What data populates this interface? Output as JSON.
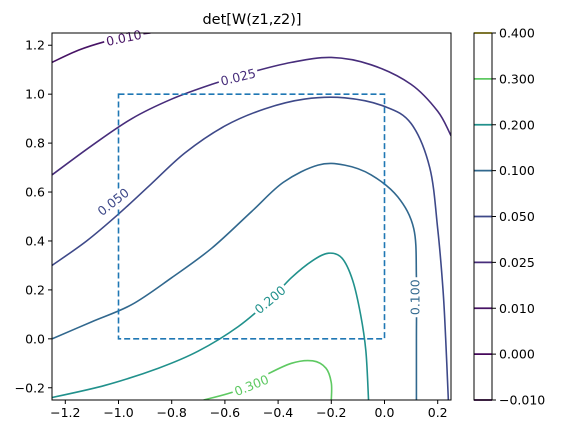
{
  "chart_data": {
    "type": "contour",
    "title": "det[W(z1,z2)]",
    "xlabel": "",
    "ylabel": "",
    "xlim": [
      -1.25,
      0.25
    ],
    "ylim": [
      -0.25,
      1.25
    ],
    "x_ticks": [
      "−1.2",
      "−1.0",
      "−0.8",
      "−0.6",
      "−0.4",
      "−0.2",
      "0.0",
      "0.2"
    ],
    "x_tick_values": [
      -1.2,
      -1.0,
      -0.8,
      -0.6,
      -0.4,
      -0.2,
      0.0,
      0.2
    ],
    "y_ticks": [
      "−0.2",
      "0.0",
      "0.2",
      "0.4",
      "0.6",
      "0.8",
      "1.0",
      "1.2"
    ],
    "y_tick_values": [
      -0.2,
      0.0,
      0.2,
      0.4,
      0.6,
      0.8,
      1.0,
      1.2
    ],
    "grid": false,
    "levels": [
      {
        "value": -0.01,
        "label": "−0.010",
        "color": "#440154"
      },
      {
        "value": 0.0,
        "label": "0.000",
        "color": "#46085c"
      },
      {
        "value": 0.01,
        "label": "0.010",
        "color": "#471365"
      },
      {
        "value": 0.025,
        "label": "0.025",
        "color": "#472d7b"
      },
      {
        "value": 0.05,
        "label": "0.050",
        "color": "#3e4989"
      },
      {
        "value": 0.1,
        "label": "0.100",
        "color": "#31688e"
      },
      {
        "value": 0.2,
        "label": "0.200",
        "color": "#21918c"
      },
      {
        "value": 0.3,
        "label": "0.300",
        "color": "#5ec962"
      },
      {
        "value": 0.4,
        "label": "0.400",
        "color": "#fde725"
      }
    ],
    "contours": [
      {
        "level": 0.01,
        "color": "#471365",
        "points": [
          [
            -1.25,
            1.13
          ],
          [
            -1.15,
            1.18
          ],
          [
            -1.05,
            1.215
          ],
          [
            -0.95,
            1.24
          ],
          [
            -0.88,
            1.25
          ]
        ],
        "inline_label": {
          "text": "0.010",
          "x": -0.98,
          "y": 1.23,
          "angle": -12
        }
      },
      {
        "level": 0.025,
        "color": "#472d7b",
        "points": [
          [
            -1.25,
            0.67
          ],
          [
            -1.1,
            0.79
          ],
          [
            -0.95,
            0.9
          ],
          [
            -0.8,
            0.98
          ],
          [
            -0.65,
            1.04
          ],
          [
            -0.5,
            1.09
          ],
          [
            -0.35,
            1.13
          ],
          [
            -0.2,
            1.15
          ],
          [
            -0.05,
            1.12
          ],
          [
            0.1,
            1.04
          ],
          [
            0.2,
            0.93
          ],
          [
            0.25,
            0.83
          ]
        ],
        "inline_label": {
          "text": "0.025",
          "x": -0.55,
          "y": 1.07,
          "angle": -14
        }
      },
      {
        "level": 0.05,
        "color": "#3e4989",
        "points": [
          [
            -1.25,
            0.3
          ],
          [
            -1.12,
            0.4
          ],
          [
            -1.0,
            0.51
          ],
          [
            -0.88,
            0.63
          ],
          [
            -0.75,
            0.76
          ],
          [
            -0.6,
            0.87
          ],
          [
            -0.45,
            0.94
          ],
          [
            -0.3,
            0.98
          ],
          [
            -0.15,
            0.985
          ],
          [
            0.0,
            0.95
          ],
          [
            0.1,
            0.88
          ],
          [
            0.17,
            0.7
          ],
          [
            0.2,
            0.45
          ],
          [
            0.22,
            0.2
          ],
          [
            0.23,
            0.0
          ],
          [
            0.24,
            -0.25
          ]
        ],
        "inline_label": {
          "text": "0.050",
          "x": -1.02,
          "y": 0.56,
          "angle": -38
        }
      },
      {
        "level": 0.1,
        "color": "#31688e",
        "points": [
          [
            -1.25,
            0.0
          ],
          [
            -1.1,
            0.07
          ],
          [
            -0.95,
            0.14
          ],
          [
            -0.8,
            0.25
          ],
          [
            -0.65,
            0.37
          ],
          [
            -0.5,
            0.52
          ],
          [
            -0.38,
            0.64
          ],
          [
            -0.25,
            0.71
          ],
          [
            -0.15,
            0.71
          ],
          [
            -0.05,
            0.67
          ],
          [
            0.05,
            0.58
          ],
          [
            0.11,
            0.45
          ],
          [
            0.12,
            0.25
          ],
          [
            0.12,
            0.0
          ],
          [
            0.12,
            -0.25
          ]
        ],
        "inline_label": {
          "text": "0.100",
          "x": 0.115,
          "y": 0.17,
          "angle": -90
        }
      },
      {
        "level": 0.2,
        "color": "#21918c",
        "points": [
          [
            -1.25,
            -0.24
          ],
          [
            -1.05,
            -0.19
          ],
          [
            -0.85,
            -0.12
          ],
          [
            -0.7,
            -0.05
          ],
          [
            -0.55,
            0.05
          ],
          [
            -0.43,
            0.16
          ],
          [
            -0.35,
            0.25
          ],
          [
            -0.27,
            0.32
          ],
          [
            -0.21,
            0.35
          ],
          [
            -0.16,
            0.33
          ],
          [
            -0.12,
            0.24
          ],
          [
            -0.09,
            0.1
          ],
          [
            -0.07,
            -0.05
          ],
          [
            -0.06,
            -0.25
          ]
        ],
        "inline_label": {
          "text": "0.200",
          "x": -0.43,
          "y": 0.16,
          "angle": -40
        }
      },
      {
        "level": 0.3,
        "color": "#5ec962",
        "points": [
          [
            -0.68,
            -0.25
          ],
          [
            -0.55,
            -0.21
          ],
          [
            -0.45,
            -0.15
          ],
          [
            -0.35,
            -0.1
          ],
          [
            -0.27,
            -0.09
          ],
          [
            -0.22,
            -0.12
          ],
          [
            -0.2,
            -0.18
          ],
          [
            -0.2,
            -0.25
          ]
        ],
        "inline_label": {
          "text": "0.300",
          "x": -0.5,
          "y": -0.19,
          "angle": -22
        }
      }
    ],
    "region": {
      "style": "dashed",
      "color": "#1f77b4",
      "x": [
        -1.0,
        0.0
      ],
      "y": [
        0.0,
        1.0
      ]
    },
    "colorbar": {
      "ticks": [
        "−0.010",
        "0.000",
        "0.010",
        "0.025",
        "0.050",
        "0.100",
        "0.200",
        "0.300",
        "0.400"
      ]
    }
  }
}
